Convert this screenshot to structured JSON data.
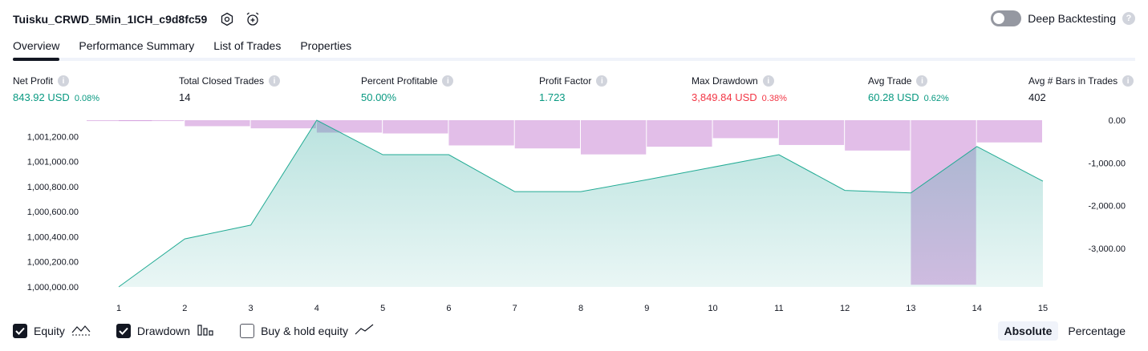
{
  "header": {
    "strategy_name": "Tuisku_CRWD_5Min_1ICH_c9d8fc59",
    "settings_icon": "settings-hex-icon",
    "alert_icon": "alarm-clock-add-icon",
    "deep_backtesting_label": "Deep Backtesting",
    "deep_backtesting_enabled": false,
    "help_glyph": "?"
  },
  "tabs": [
    {
      "label": "Overview",
      "active": true
    },
    {
      "label": "Performance Summary",
      "active": false
    },
    {
      "label": "List of Trades",
      "active": false
    },
    {
      "label": "Properties",
      "active": false
    }
  ],
  "metrics": [
    {
      "label": "Net Profit",
      "value": "843.92 USD",
      "pct": "0.08%",
      "tone": "pos"
    },
    {
      "label": "Total Closed Trades",
      "value": "14",
      "pct": "",
      "tone": "neu"
    },
    {
      "label": "Percent Profitable",
      "value": "50.00%",
      "pct": "",
      "tone": "pos"
    },
    {
      "label": "Profit Factor",
      "value": "1.723",
      "pct": "",
      "tone": "pos"
    },
    {
      "label": "Max Drawdown",
      "value": "3,849.84 USD",
      "pct": "0.38%",
      "tone": "neg"
    },
    {
      "label": "Avg Trade",
      "value": "60.28 USD",
      "pct": "0.62%",
      "tone": "pos"
    },
    {
      "label": "Avg # Bars in Trades",
      "value": "402",
      "pct": "",
      "tone": "neu"
    }
  ],
  "info_glyph": "i",
  "colors": {
    "equity_line": "#22ab94",
    "equity_fill": "#26a69a",
    "drawdown_bar": "#ce93d8",
    "positive": "#089981",
    "negative": "#f23645"
  },
  "chart_data": {
    "type": "area",
    "x": [
      1,
      2,
      3,
      4,
      5,
      6,
      7,
      8,
      9,
      10,
      11,
      12,
      13,
      14,
      15
    ],
    "series": [
      {
        "name": "Equity",
        "axis": "left",
        "type": "area",
        "values": [
          1000000,
          1000383,
          1000493,
          1001330,
          1001055,
          1001055,
          1000760,
          1000760,
          1000855,
          1000955,
          1001055,
          1000770,
          1000750,
          1001120,
          1000844
        ]
      },
      {
        "name": "Drawdown",
        "axis": "right",
        "type": "bar",
        "values": [
          -20,
          -20,
          -140,
          -190,
          -290,
          -310,
          -590,
          -660,
          -800,
          -620,
          -420,
          -580,
          -710,
          -3849.84,
          -520
        ]
      }
    ],
    "left_axis": {
      "ticks": [
        "1,000,000.00",
        "1,000,200.00",
        "1,000,400.00",
        "1,000,600.00",
        "1,000,800.00",
        "1,001,000.00",
        "1,001,200.00"
      ],
      "ylim": [
        1000000,
        1001330
      ]
    },
    "right_axis": {
      "ticks": [
        "0.00",
        "-1,000.00",
        "-2,000.00",
        "-3,000.00"
      ],
      "ylim": [
        -3900,
        0
      ]
    },
    "x_ticks": [
      "1",
      "2",
      "3",
      "4",
      "5",
      "6",
      "7",
      "8",
      "9",
      "10",
      "11",
      "12",
      "13",
      "14",
      "15"
    ],
    "grid": false
  },
  "legend": [
    {
      "label": "Equity",
      "checked": true,
      "icon": "equity-line-icon"
    },
    {
      "label": "Drawdown",
      "checked": true,
      "icon": "drawdown-bars-icon"
    },
    {
      "label": "Buy & hold equity",
      "checked": false,
      "icon": "buy-hold-line-icon"
    }
  ],
  "modes": [
    {
      "label": "Absolute",
      "active": true
    },
    {
      "label": "Percentage",
      "active": false
    }
  ]
}
